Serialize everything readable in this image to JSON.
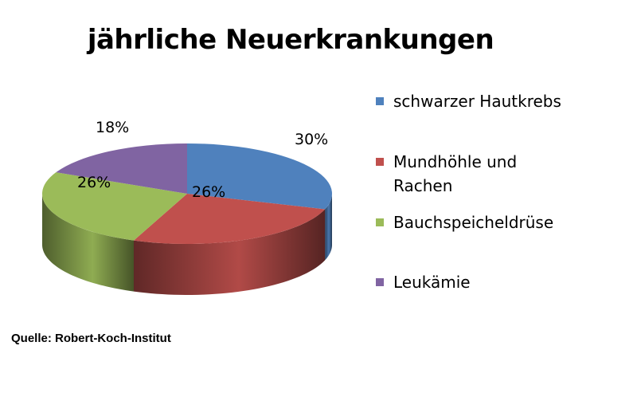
{
  "chart_data": {
    "type": "pie",
    "title": "jährliche Neuerkrankungen",
    "slices": [
      {
        "name": "schwarzer Hautkrebs",
        "value": 30,
        "label": "30%",
        "color": "#4F81BD"
      },
      {
        "name": "Mundhöhle und Rachen",
        "value": 26,
        "label": "26%",
        "color": "#C0504D"
      },
      {
        "name": "Bauchspeicheldrüse",
        "value": 26,
        "label": "26%",
        "color": "#9BBB59"
      },
      {
        "name": "Leukämie",
        "value": 18,
        "label": "18%",
        "color": "#8064A2"
      }
    ],
    "legend_position": "right"
  },
  "source": "Quelle: Robert-Koch-Institut"
}
